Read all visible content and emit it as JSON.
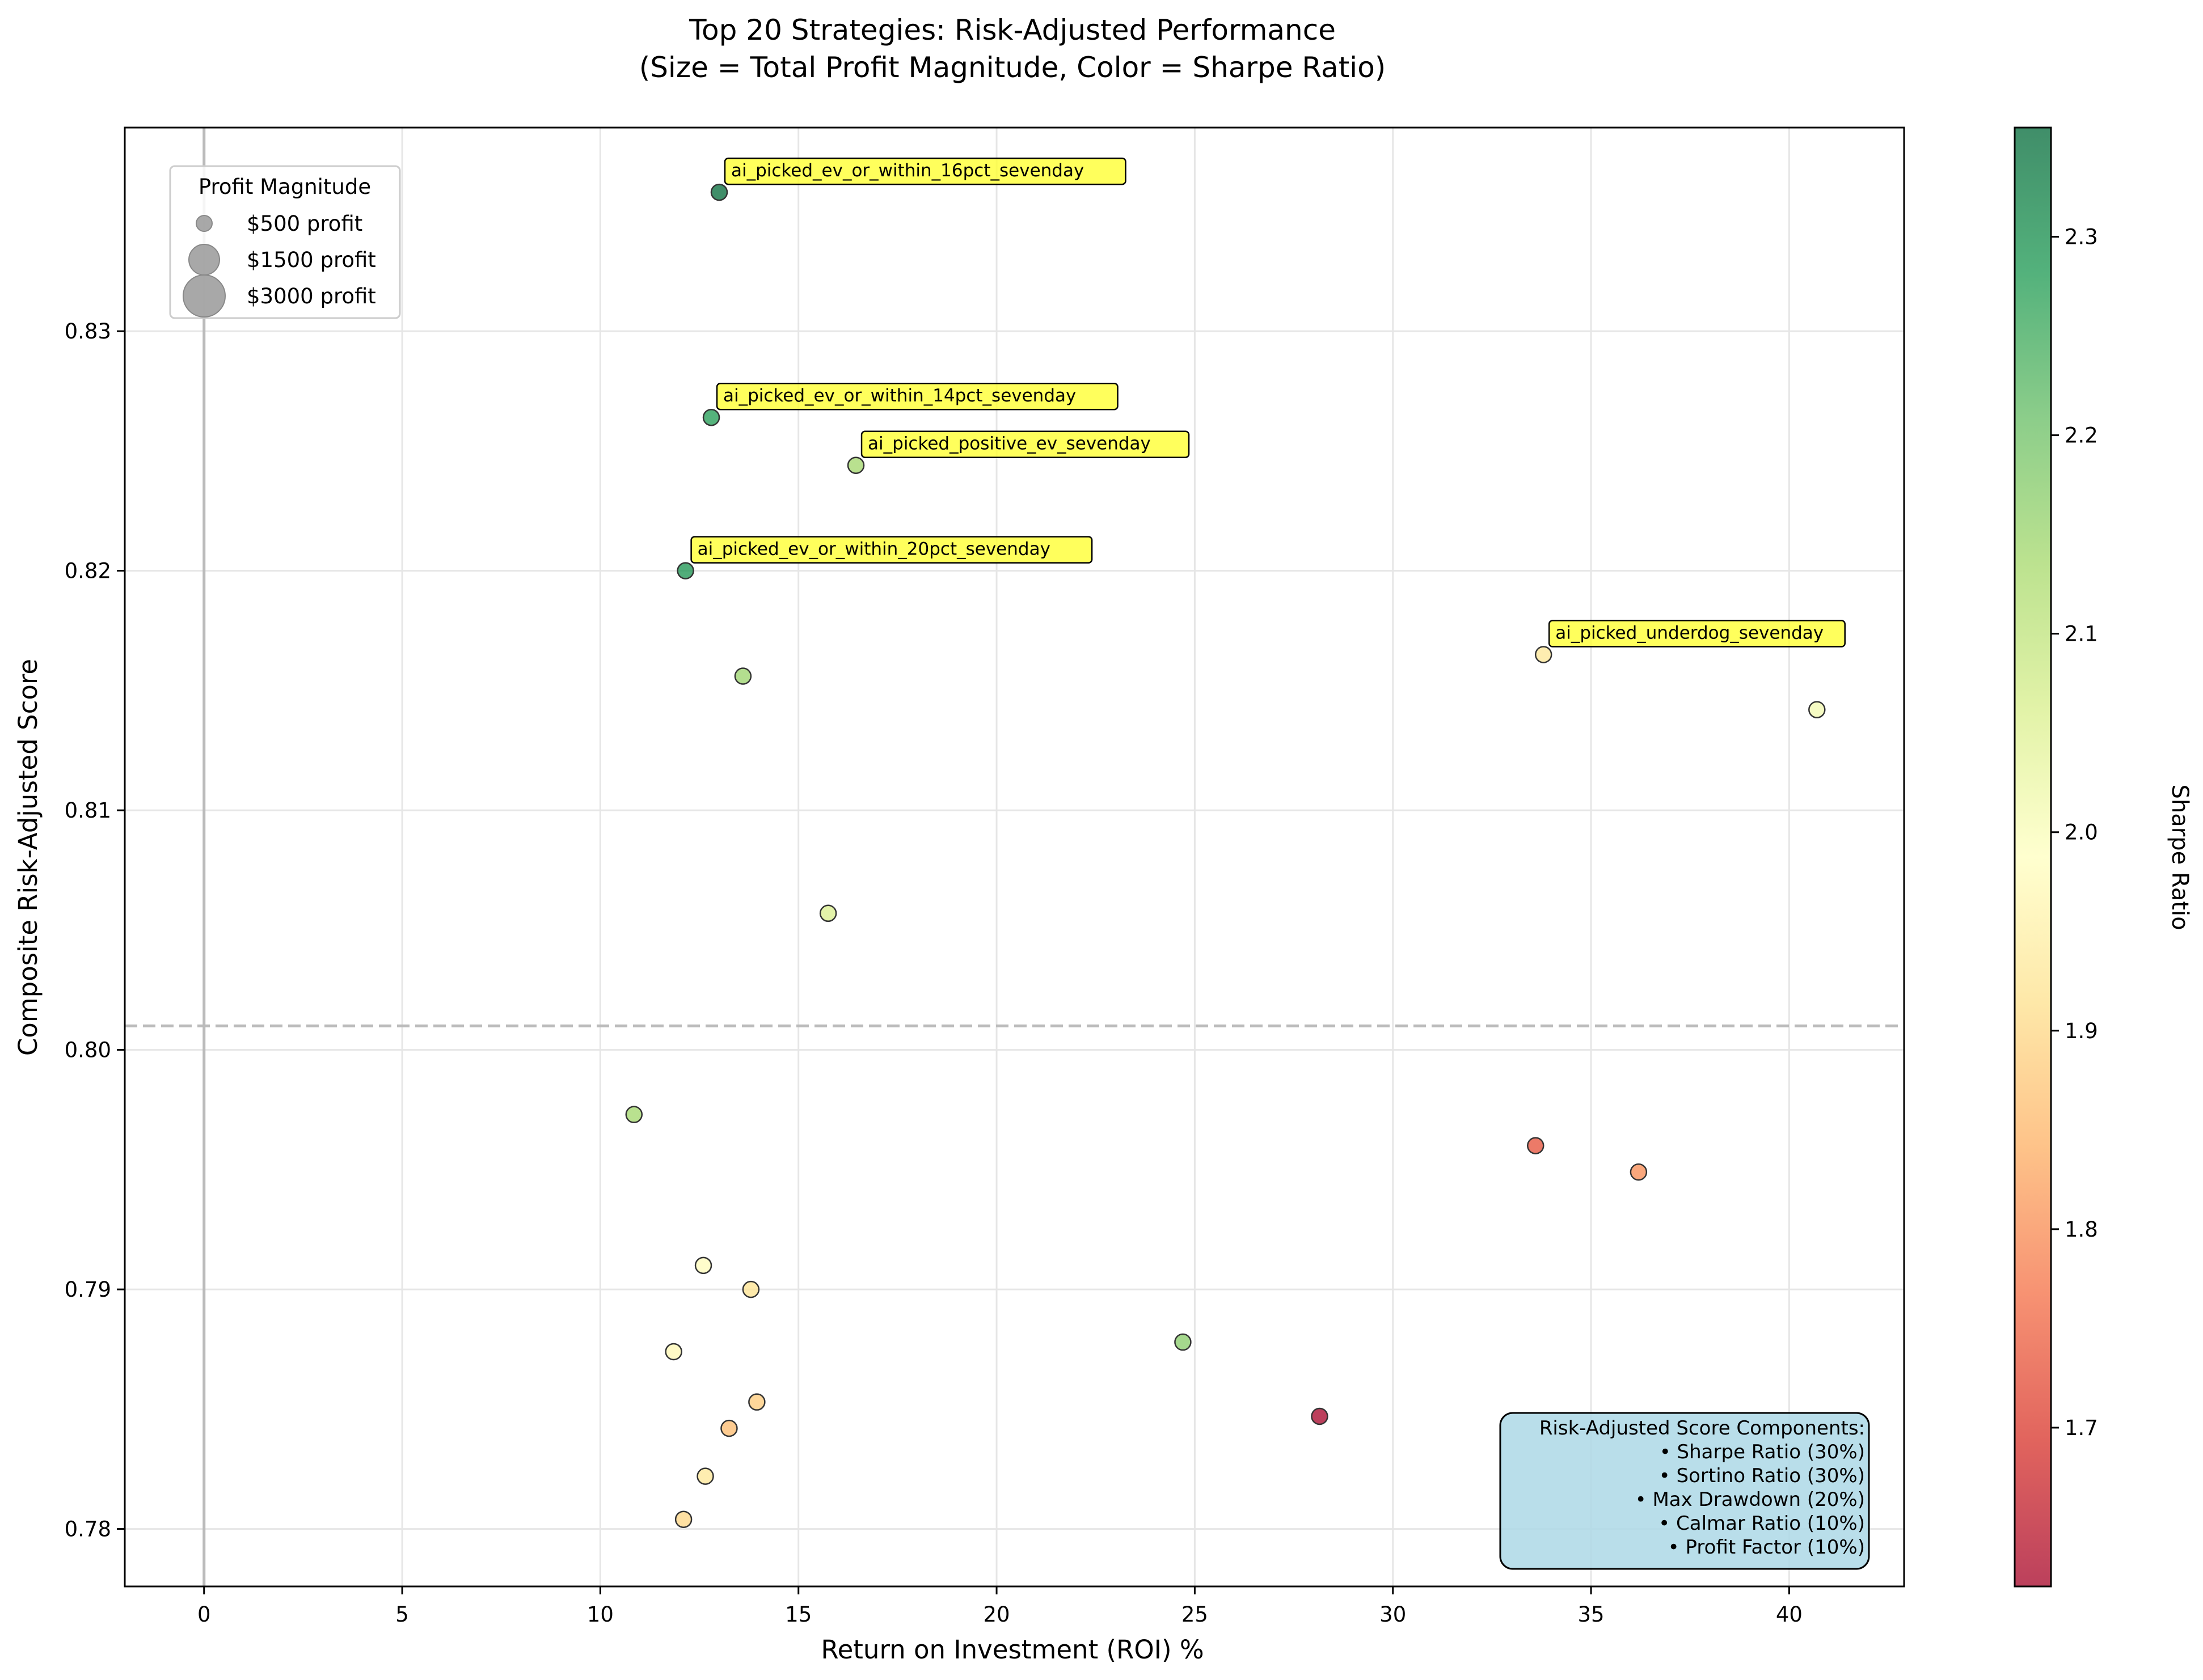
{
  "chart_data": {
    "type": "scatter",
    "title": "Top 20 Strategies: Risk-Adjusted Performance",
    "subtitle": "(Size = Total Profit Magnitude, Color = Sharpe Ratio)",
    "xlabel": "Return on Investment (ROI) %",
    "ylabel": "Composite Risk-Adjusted Score",
    "xlim": [
      -2,
      42.9
    ],
    "ylim": [
      0.7776,
      0.8385
    ],
    "xticks": [
      0,
      5,
      10,
      15,
      20,
      25,
      30,
      35,
      40
    ],
    "yticks": [
      0.78,
      0.79,
      0.8,
      0.81,
      0.82,
      0.83
    ],
    "grid": true,
    "reference_lines": {
      "horizontal_dashed_y": 0.801,
      "vertical_x": 0
    },
    "colorbar": {
      "label": "Sharpe Ratio",
      "range": [
        1.62,
        2.355
      ],
      "ticks": [
        1.7,
        1.8,
        1.9,
        2.0,
        2.1,
        2.2,
        2.3
      ],
      "colormap": "RdYlGn"
    },
    "size_legend": {
      "title": "Profit Magnitude",
      "placement": "upper-left",
      "entries": [
        {
          "label": "$500 profit",
          "profit": 500
        },
        {
          "label": "$1500 profit",
          "profit": 1500
        },
        {
          "label": "$3000 profit",
          "profit": 3000
        }
      ]
    },
    "points": [
      {
        "x": 13.0,
        "y": 0.8358,
        "sharpe": 2.355,
        "label": "ai_picked_ev_or_within_16pct_sevenday"
      },
      {
        "x": 12.8,
        "y": 0.8264,
        "sharpe": 2.28,
        "label": "ai_picked_ev_or_within_14pct_sevenday"
      },
      {
        "x": 16.45,
        "y": 0.8244,
        "sharpe": 2.14,
        "label": "ai_picked_positive_ev_sevenday"
      },
      {
        "x": 12.15,
        "y": 0.82,
        "sharpe": 2.29,
        "label": "ai_picked_ev_or_within_20pct_sevenday"
      },
      {
        "x": 33.8,
        "y": 0.8165,
        "sharpe": 1.93,
        "label": "ai_picked_underdog_sevenday"
      },
      {
        "x": 13.6,
        "y": 0.8156,
        "sharpe": 2.15
      },
      {
        "x": 40.7,
        "y": 0.8142,
        "sharpe": 2.01
      },
      {
        "x": 15.75,
        "y": 0.8057,
        "sharpe": 2.06
      },
      {
        "x": 10.85,
        "y": 0.7973,
        "sharpe": 2.14
      },
      {
        "x": 33.6,
        "y": 0.796,
        "sharpe": 1.73
      },
      {
        "x": 36.2,
        "y": 0.7949,
        "sharpe": 1.8
      },
      {
        "x": 12.6,
        "y": 0.791,
        "sharpe": 1.98
      },
      {
        "x": 13.8,
        "y": 0.79,
        "sharpe": 1.92
      },
      {
        "x": 24.7,
        "y": 0.7878,
        "sharpe": 2.17
      },
      {
        "x": 11.85,
        "y": 0.7874,
        "sharpe": 1.97
      },
      {
        "x": 13.95,
        "y": 0.7853,
        "sharpe": 1.88
      },
      {
        "x": 28.15,
        "y": 0.7847,
        "sharpe": 1.62
      },
      {
        "x": 13.25,
        "y": 0.7842,
        "sharpe": 1.86
      },
      {
        "x": 12.65,
        "y": 0.7822,
        "sharpe": 1.93
      },
      {
        "x": 12.1,
        "y": 0.7804,
        "sharpe": 1.9
      }
    ],
    "annotation_box": {
      "title": "Risk-Adjusted Score Components:",
      "lines": [
        "• Sharpe Ratio (30%)",
        "• Sortino Ratio (30%)",
        "• Max Drawdown (20%)",
        "• Calmar Ratio (10%)",
        "• Profit Factor (10%)"
      ]
    },
    "colors": {
      "label_box": "#ffff33",
      "info_box": "#add8e6",
      "grid": "#e6e6e6",
      "ref_line": "#bbbbbb"
    }
  }
}
